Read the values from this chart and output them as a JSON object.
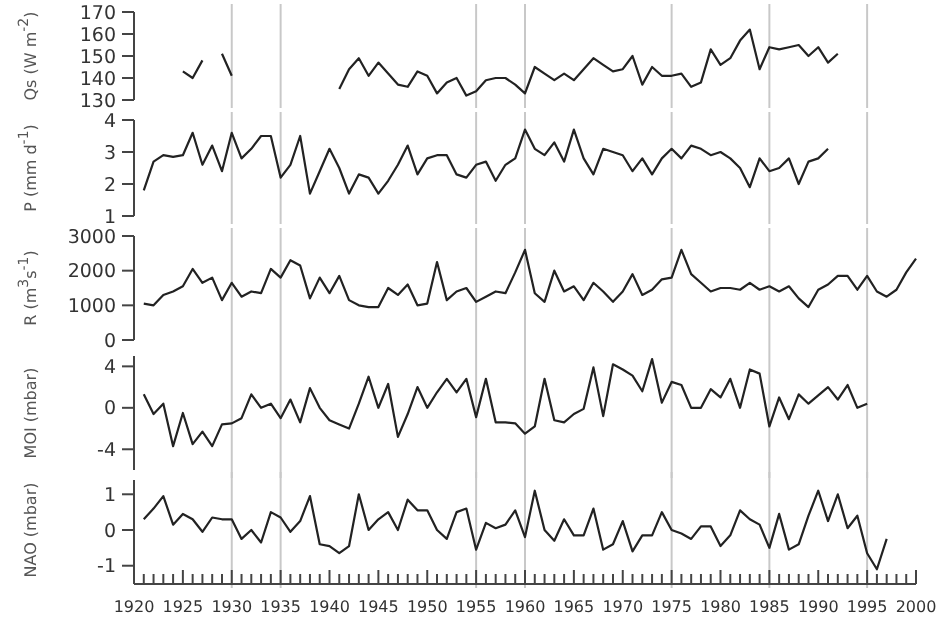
{
  "chart_data": [
    {
      "type": "line",
      "ylabel": "Qs (W m$^{-2}$)",
      "xlim": [
        1920,
        2000
      ],
      "ylim": [
        130,
        170
      ],
      "yticks": [
        130,
        140,
        150,
        160,
        170
      ],
      "tick_labels": "y",
      "ref_lines": [
        {
          "axis": "x",
          "value": 1930,
          "color": "#c8c8c8"
        },
        {
          "axis": "x",
          "value": 1935,
          "color": "#c8c8c8"
        },
        {
          "axis": "x",
          "value": 1955,
          "color": "#c8c8c8"
        },
        {
          "axis": "x",
          "value": 1960,
          "color": "#c8c8c8"
        },
        {
          "axis": "x",
          "value": 1975,
          "color": "#c8c8c8"
        },
        {
          "axis": "x",
          "value": 1985,
          "color": "#c8c8c8"
        },
        {
          "axis": "x",
          "value": 1995,
          "color": "#c8c8c8"
        }
      ],
      "x": [
        1925,
        1926,
        1927,
        1928,
        1929,
        1930,
        1931,
        1932,
        1933,
        1934,
        1935,
        1936,
        1937,
        1938,
        1939,
        1940,
        1941,
        1942,
        1943,
        1944,
        1945,
        1946,
        1947,
        1948,
        1949,
        1950,
        1951,
        1952,
        1953,
        1954,
        1955,
        1956,
        1957,
        1958,
        1959,
        1960,
        1961,
        1962,
        1963,
        1964,
        1965,
        1966,
        1967,
        1968,
        1969,
        1970,
        1971,
        1972,
        1973,
        1974,
        1975,
        1976,
        1977,
        1978,
        1979,
        1980,
        1981,
        1982,
        1983,
        1984,
        1985,
        1986,
        1987,
        1988,
        1989,
        1990,
        1991,
        1992
      ],
      "series": [
        {
          "color": "#222222",
          "values": [
            143,
            140,
            148,
            null,
            151,
            141,
            null,
            null,
            null,
            null,
            null,
            null,
            null,
            null,
            null,
            null,
            135,
            144,
            149,
            141,
            147,
            142,
            137,
            136,
            143,
            141,
            133,
            138,
            140,
            132,
            134,
            139,
            140,
            140,
            137,
            133,
            145,
            142,
            139,
            142,
            139,
            144,
            149,
            146,
            143,
            144,
            150,
            137,
            145,
            141,
            141,
            142,
            136,
            138,
            153,
            146,
            149,
            157,
            162,
            144,
            154,
            153,
            154,
            155,
            150,
            154,
            147,
            151
          ]
        }
      ]
    },
    {
      "type": "line",
      "ylabel": "P (mm d$^{-1}$)",
      "xlim": [
        1920,
        2000
      ],
      "ylim": [
        1,
        4
      ],
      "yticks": [
        1,
        2,
        3,
        4
      ],
      "tick_labels": "y",
      "ref_lines": [
        {
          "axis": "x",
          "value": 1930,
          "color": "#c8c8c8"
        },
        {
          "axis": "x",
          "value": 1935,
          "color": "#c8c8c8"
        },
        {
          "axis": "x",
          "value": 1955,
          "color": "#c8c8c8"
        },
        {
          "axis": "x",
          "value": 1960,
          "color": "#c8c8c8"
        },
        {
          "axis": "x",
          "value": 1975,
          "color": "#c8c8c8"
        },
        {
          "axis": "x",
          "value": 1985,
          "color": "#c8c8c8"
        },
        {
          "axis": "x",
          "value": 1995,
          "color": "#c8c8c8"
        }
      ],
      "x": [
        1921,
        1922,
        1923,
        1924,
        1925,
        1926,
        1927,
        1928,
        1929,
        1930,
        1931,
        1932,
        1933,
        1934,
        1935,
        1936,
        1937,
        1938,
        1939,
        1940,
        1941,
        1942,
        1943,
        1944,
        1945,
        1946,
        1947,
        1948,
        1949,
        1950,
        1951,
        1952,
        1953,
        1954,
        1955,
        1956,
        1957,
        1958,
        1959,
        1960,
        1961,
        1962,
        1963,
        1964,
        1965,
        1966,
        1967,
        1968,
        1969,
        1970,
        1971,
        1972,
        1973,
        1974,
        1975,
        1976,
        1977,
        1978,
        1979,
        1980,
        1981,
        1982,
        1983,
        1984,
        1985,
        1986,
        1987,
        1988,
        1989,
        1990,
        1991
      ],
      "series": [
        {
          "color": "#222222",
          "values": [
            1.8,
            2.7,
            2.9,
            2.85,
            2.9,
            3.6,
            2.6,
            3.2,
            2.4,
            3.6,
            2.8,
            3.1,
            3.5,
            3.5,
            2.2,
            2.6,
            3.5,
            1.7,
            2.4,
            3.1,
            2.5,
            1.7,
            2.3,
            2.2,
            1.7,
            2.1,
            2.6,
            3.2,
            2.3,
            2.8,
            2.9,
            2.9,
            2.3,
            2.2,
            2.6,
            2.7,
            2.1,
            2.6,
            2.8,
            3.7,
            3.1,
            2.9,
            3.3,
            2.7,
            3.7,
            2.8,
            2.3,
            3.1,
            3.0,
            2.9,
            2.4,
            2.8,
            2.3,
            2.8,
            3.1,
            2.8,
            3.2,
            3.1,
            2.9,
            3.0,
            2.8,
            2.5,
            1.9,
            2.8,
            2.4,
            2.5,
            2.8,
            2.0,
            2.7,
            2.8,
            3.1
          ]
        }
      ]
    },
    {
      "type": "line",
      "ylabel": "R (m$^{3}$s$^{-1}$)",
      "xlim": [
        1920,
        2000
      ],
      "ylim": [
        0,
        3000
      ],
      "yticks": [
        0,
        1000,
        2000,
        3000
      ],
      "tick_labels": "y",
      "ref_lines": [
        {
          "axis": "x",
          "value": 1930,
          "color": "#c8c8c8"
        },
        {
          "axis": "x",
          "value": 1935,
          "color": "#c8c8c8"
        },
        {
          "axis": "x",
          "value": 1955,
          "color": "#c8c8c8"
        },
        {
          "axis": "x",
          "value": 1960,
          "color": "#c8c8c8"
        },
        {
          "axis": "x",
          "value": 1975,
          "color": "#c8c8c8"
        },
        {
          "axis": "x",
          "value": 1985,
          "color": "#c8c8c8"
        },
        {
          "axis": "x",
          "value": 1995,
          "color": "#c8c8c8"
        }
      ],
      "x": [
        1921,
        1922,
        1923,
        1924,
        1925,
        1926,
        1927,
        1928,
        1929,
        1930,
        1931,
        1932,
        1933,
        1934,
        1935,
        1936,
        1937,
        1938,
        1939,
        1940,
        1941,
        1942,
        1943,
        1944,
        1945,
        1946,
        1947,
        1948,
        1949,
        1950,
        1951,
        1952,
        1953,
        1954,
        1955,
        1956,
        1957,
        1958,
        1959,
        1960,
        1961,
        1962,
        1963,
        1964,
        1965,
        1966,
        1967,
        1968,
        1969,
        1970,
        1971,
        1972,
        1973,
        1974,
        1975,
        1976,
        1977,
        1978,
        1979,
        1980,
        1981,
        1982,
        1983,
        1984,
        1985,
        1986,
        1987,
        1988,
        1989,
        1990,
        1991,
        1992,
        1993,
        1994,
        1995,
        1996,
        1997,
        1998,
        1999,
        2000
      ],
      "series": [
        {
          "color": "#222222",
          "values": [
            1050,
            1000,
            1300,
            1400,
            1550,
            2050,
            1650,
            1800,
            1150,
            1650,
            1250,
            1400,
            1350,
            2050,
            1800,
            2300,
            2150,
            1200,
            1800,
            1350,
            1850,
            1150,
            1000,
            950,
            950,
            1500,
            1300,
            1600,
            1000,
            1050,
            2250,
            1150,
            1400,
            1500,
            1100,
            1250,
            1400,
            1350,
            1950,
            2600,
            1350,
            1100,
            2000,
            1400,
            1550,
            1150,
            1650,
            1400,
            1100,
            1400,
            1900,
            1300,
            1450,
            1750,
            1800,
            2600,
            1900,
            1650,
            1400,
            1500,
            1500,
            1450,
            1650,
            1450,
            1550,
            1400,
            1550,
            1200,
            950,
            1450,
            1600,
            1850,
            1850,
            1450,
            1850,
            1400,
            1250,
            1450,
            1950,
            2350
          ]
        }
      ]
    },
    {
      "type": "line",
      "ylabel": "MOI (mbar)",
      "xlim": [
        1920,
        2000
      ],
      "ylim": [
        -6,
        5
      ],
      "yticks": [
        -4,
        0,
        4
      ],
      "tick_labels": "y",
      "ref_lines": [
        {
          "axis": "x",
          "value": 1930,
          "color": "#c8c8c8"
        },
        {
          "axis": "x",
          "value": 1935,
          "color": "#c8c8c8"
        },
        {
          "axis": "x",
          "value": 1955,
          "color": "#c8c8c8"
        },
        {
          "axis": "x",
          "value": 1960,
          "color": "#c8c8c8"
        },
        {
          "axis": "x",
          "value": 1975,
          "color": "#c8c8c8"
        },
        {
          "axis": "x",
          "value": 1985,
          "color": "#c8c8c8"
        },
        {
          "axis": "x",
          "value": 1995,
          "color": "#c8c8c8"
        }
      ],
      "x": [
        1921,
        1922,
        1923,
        1924,
        1925,
        1926,
        1927,
        1928,
        1929,
        1930,
        1931,
        1932,
        1933,
        1934,
        1935,
        1936,
        1937,
        1938,
        1939,
        1940,
        1941,
        1942,
        1943,
        1944,
        1945,
        1946,
        1947,
        1948,
        1949,
        1950,
        1951,
        1952,
        1953,
        1954,
        1955,
        1956,
        1957,
        1958,
        1959,
        1960,
        1961,
        1962,
        1963,
        1964,
        1965,
        1966,
        1967,
        1968,
        1969,
        1970,
        1971,
        1972,
        1973,
        1974,
        1975,
        1976,
        1977,
        1978,
        1979,
        1980,
        1981,
        1982,
        1983,
        1984,
        1985,
        1986,
        1987,
        1988,
        1989,
        1990,
        1991,
        1992,
        1993,
        1994,
        1995
      ],
      "series": [
        {
          "color": "#222222",
          "values": [
            1.3,
            -0.6,
            0.4,
            -3.7,
            -0.5,
            -3.5,
            -2.3,
            -3.7,
            -1.6,
            -1.5,
            -1.0,
            1.3,
            0,
            0.4,
            -1.0,
            0.8,
            -1.4,
            1.9,
            0,
            -1.2,
            -1.6,
            -2.0,
            0.4,
            3.0,
            0,
            2.3,
            -2.8,
            -0.6,
            2.0,
            0,
            1.5,
            2.8,
            1.5,
            2.8,
            -0.9,
            2.8,
            -1.4,
            -1.4,
            -1.5,
            -2.5,
            -1.8,
            2.8,
            -1.2,
            -1.4,
            -0.6,
            -0.1,
            3.9,
            -0.8,
            4.2,
            3.7,
            3.1,
            1.6,
            4.7,
            0.5,
            2.5,
            2.2,
            0,
            0,
            1.8,
            1.0,
            2.8,
            0,
            3.7,
            3.3,
            -1.8,
            1.0,
            -1.1,
            1.3,
            0.4,
            1.2,
            2.0,
            0.8,
            2.2,
            0,
            0.4
          ]
        }
      ]
    },
    {
      "type": "line",
      "ylabel": "NAO (mbar)",
      "xlim": [
        1920,
        2000
      ],
      "ylim": [
        -1.4,
        1.4
      ],
      "yticks": [
        -1,
        0,
        1
      ],
      "xticks": [
        1920,
        {
          "value": 1921,
          "label": null
        },
        {
          "value": 1922,
          "label": null
        },
        {
          "value": 1923,
          "label": null
        },
        {
          "value": 1924,
          "label": null
        },
        1925,
        {
          "value": 1926,
          "label": null
        },
        {
          "value": 1927,
          "label": null
        },
        {
          "value": 1928,
          "label": null
        },
        {
          "value": 1929,
          "label": null
        },
        1930,
        {
          "value": 1931,
          "label": null
        },
        {
          "value": 1932,
          "label": null
        },
        {
          "value": 1933,
          "label": null
        },
        {
          "value": 1934,
          "label": null
        },
        1935,
        {
          "value": 1936,
          "label": null
        },
        {
          "value": 1937,
          "label": null
        },
        {
          "value": 1938,
          "label": null
        },
        {
          "value": 1939,
          "label": null
        },
        1940,
        {
          "value": 1941,
          "label": null
        },
        {
          "value": 1942,
          "label": null
        },
        {
          "value": 1943,
          "label": null
        },
        {
          "value": 1944,
          "label": null
        },
        1945,
        {
          "value": 1946,
          "label": null
        },
        {
          "value": 1947,
          "label": null
        },
        {
          "value": 1948,
          "label": null
        },
        {
          "value": 1949,
          "label": null
        },
        1950,
        {
          "value": 1951,
          "label": null
        },
        {
          "value": 1952,
          "label": null
        },
        {
          "value": 1953,
          "label": null
        },
        {
          "value": 1954,
          "label": null
        },
        1955,
        {
          "value": 1956,
          "label": null
        },
        {
          "value": 1957,
          "label": null
        },
        {
          "value": 1958,
          "label": null
        },
        {
          "value": 1959,
          "label": null
        },
        1960,
        {
          "value": 1961,
          "label": null
        },
        {
          "value": 1962,
          "label": null
        },
        {
          "value": 1963,
          "label": null
        },
        {
          "value": 1964,
          "label": null
        },
        1965,
        {
          "value": 1966,
          "label": null
        },
        {
          "value": 1967,
          "label": null
        },
        {
          "value": 1968,
          "label": null
        },
        {
          "value": 1969,
          "label": null
        },
        1970,
        {
          "value": 1971,
          "label": null
        },
        {
          "value": 1972,
          "label": null
        },
        {
          "value": 1973,
          "label": null
        },
        {
          "value": 1974,
          "label": null
        },
        1975,
        {
          "value": 1976,
          "label": null
        },
        {
          "value": 1977,
          "label": null
        },
        {
          "value": 1978,
          "label": null
        },
        {
          "value": 1979,
          "label": null
        },
        1980,
        {
          "value": 1981,
          "label": null
        },
        {
          "value": 1982,
          "label": null
        },
        {
          "value": 1983,
          "label": null
        },
        {
          "value": 1984,
          "label": null
        },
        1985,
        {
          "value": 1986,
          "label": null
        },
        {
          "value": 1987,
          "label": null
        },
        {
          "value": 1988,
          "label": null
        },
        {
          "value": 1989,
          "label": null
        },
        1990,
        {
          "value": 1991,
          "label": null
        },
        {
          "value": 1992,
          "label": null
        },
        {
          "value": 1993,
          "label": null
        },
        {
          "value": 1994,
          "label": null
        },
        1995,
        {
          "value": 1996,
          "label": null
        },
        {
          "value": 1997,
          "label": null
        },
        {
          "value": 1998,
          "label": null
        },
        {
          "value": 1999,
          "label": null
        },
        2000
      ],
      "ref_lines": [
        {
          "axis": "x",
          "value": 1930,
          "color": "#c8c8c8"
        },
        {
          "axis": "x",
          "value": 1935,
          "color": "#c8c8c8"
        },
        {
          "axis": "x",
          "value": 1955,
          "color": "#c8c8c8"
        },
        {
          "axis": "x",
          "value": 1960,
          "color": "#c8c8c8"
        },
        {
          "axis": "x",
          "value": 1975,
          "color": "#c8c8c8"
        },
        {
          "axis": "x",
          "value": 1985,
          "color": "#c8c8c8"
        },
        {
          "axis": "x",
          "value": 1995,
          "color": "#c8c8c8"
        }
      ],
      "x": [
        1921,
        1922,
        1923,
        1924,
        1925,
        1926,
        1927,
        1928,
        1929,
        1930,
        1931,
        1932,
        1933,
        1934,
        1935,
        1936,
        1937,
        1938,
        1939,
        1940,
        1941,
        1942,
        1943,
        1944,
        1945,
        1946,
        1947,
        1948,
        1949,
        1950,
        1951,
        1952,
        1953,
        1954,
        1955,
        1956,
        1957,
        1958,
        1959,
        1960,
        1961,
        1962,
        1963,
        1964,
        1965,
        1966,
        1967,
        1968,
        1969,
        1970,
        1971,
        1972,
        1973,
        1974,
        1975,
        1976,
        1977,
        1978,
        1979,
        1980,
        1981,
        1982,
        1983,
        1984,
        1985,
        1986,
        1987,
        1988,
        1989,
        1990,
        1991,
        1992,
        1993,
        1994,
        1995,
        1996,
        1997
      ],
      "series": [
        {
          "color": "#222222",
          "values": [
            0.3,
            0.6,
            0.95,
            0.15,
            0.45,
            0.3,
            -0.05,
            0.35,
            0.3,
            0.3,
            -0.25,
            0,
            -0.35,
            0.5,
            0.35,
            -0.05,
            0.25,
            0.95,
            -0.4,
            -0.45,
            -0.65,
            -0.45,
            1.0,
            0,
            0.3,
            0.5,
            0,
            0.85,
            0.55,
            0.55,
            0,
            -0.25,
            0.5,
            0.6,
            -0.55,
            0.2,
            0.05,
            0.15,
            0.55,
            -0.2,
            1.1,
            0,
            -0.3,
            0.3,
            -0.15,
            -0.15,
            0.6,
            -0.55,
            -0.4,
            0.25,
            -0.6,
            -0.15,
            -0.15,
            0.5,
            0,
            -0.1,
            -0.25,
            0.1,
            0.1,
            -0.45,
            -0.15,
            0.55,
            0.3,
            0.15,
            -0.5,
            0.45,
            -0.55,
            -0.4,
            0.4,
            1.1,
            0.25,
            1.0,
            0.05,
            0.4,
            -0.65,
            -1.1,
            -0.25
          ]
        }
      ]
    }
  ]
}
